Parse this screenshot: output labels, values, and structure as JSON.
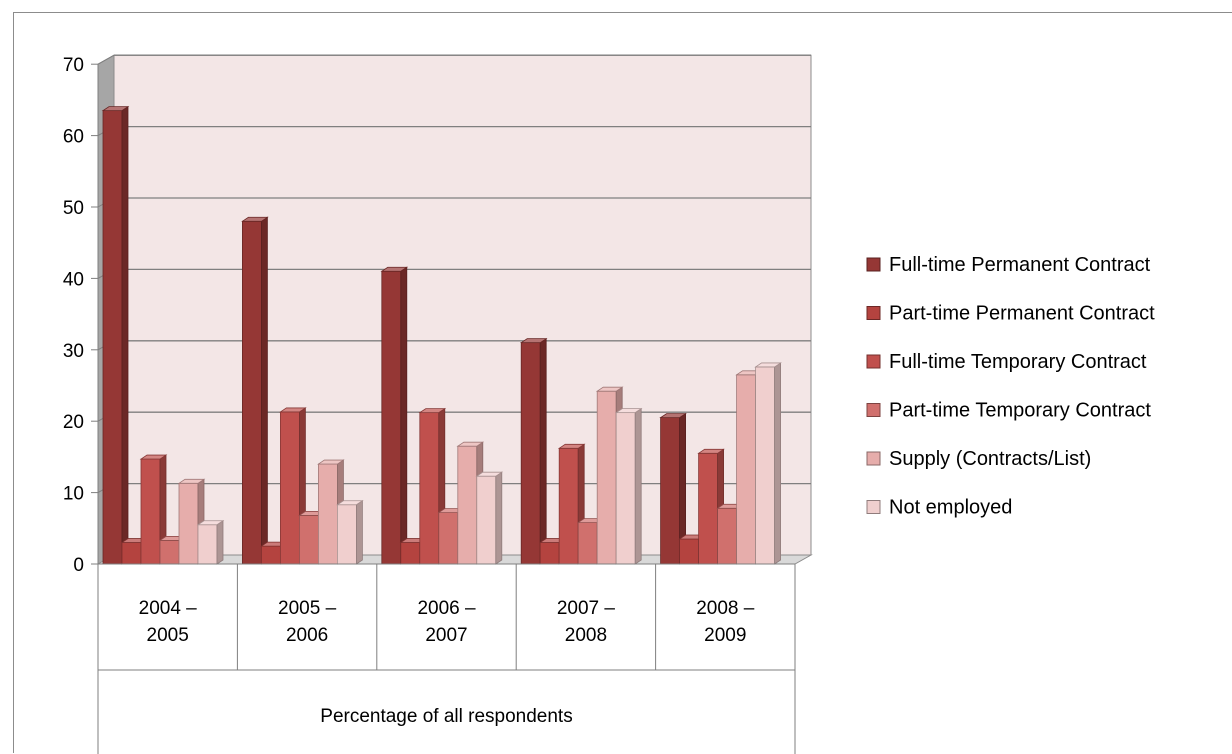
{
  "chart_data": {
    "type": "bar",
    "style": "3d-clustered-column",
    "categories": [
      "2004 –\n2005",
      "2005 –\n2006",
      "2006 –\n2007",
      "2007 –\n2008",
      "2008 –\n2009"
    ],
    "group_label": "Percentage of all respondents",
    "ylim": [
      0,
      70
    ],
    "yticks": [
      0,
      10,
      20,
      30,
      40,
      50,
      60,
      70
    ],
    "grid": true,
    "legend_position": "right",
    "series": [
      {
        "name": "Full-time Permanent Contract",
        "color": "#953735",
        "values": [
          63.5,
          48,
          41,
          31,
          20.5
        ]
      },
      {
        "name": "Part-time Permanent Contract",
        "color": "#b4433f",
        "values": [
          3,
          2.5,
          3,
          3,
          3.5
        ]
      },
      {
        "name": "Full-time Temporary Contract",
        "color": "#c0504d",
        "values": [
          14.7,
          21.3,
          21.2,
          16.2,
          15.5
        ]
      },
      {
        "name": "Part-time Temporary Contract",
        "color": "#d0706d",
        "values": [
          3.3,
          6.8,
          7.2,
          5.8,
          7.8
        ]
      },
      {
        "name": "Supply (Contracts/List)",
        "color": "#e6adab",
        "values": [
          11.3,
          14,
          16.5,
          24.2,
          26.5
        ]
      },
      {
        "name": "Not employed",
        "color": "#f0cfce",
        "values": [
          5.5,
          8.3,
          12.3,
          21.2,
          27.6
        ]
      }
    ],
    "wall_color": "#f3e6e6"
  }
}
